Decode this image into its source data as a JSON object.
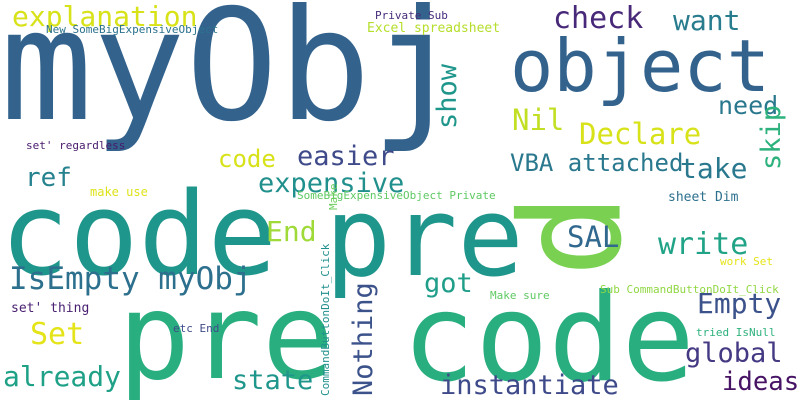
{
  "words": [
    {
      "text": "myObj",
      "color": "#33638d"
    },
    {
      "text": "object",
      "color": "#33638d"
    },
    {
      "text": "code",
      "color": "#1f968b"
    },
    {
      "text": "pre",
      "color": "#1f968b"
    },
    {
      "text": "pre",
      "color": "#29af7f"
    },
    {
      "text": "code",
      "color": "#29af7f"
    },
    {
      "text": "p",
      "color": "#7ad151"
    },
    {
      "text": "explanation",
      "color": "#d8e219"
    },
    {
      "text": "check",
      "color": "#482878"
    },
    {
      "text": "want",
      "color": "#287c8e"
    },
    {
      "text": "need",
      "color": "#2a788e"
    },
    {
      "text": "Declare",
      "color": "#d8e219"
    },
    {
      "text": "Nil",
      "color": "#c2df23"
    },
    {
      "text": "object",
      "color": "#33638d"
    },
    {
      "text": "code",
      "color": "#d8e219"
    },
    {
      "text": "easier",
      "color": "#3e4a89"
    },
    {
      "text": "take",
      "color": "#2a788e"
    },
    {
      "text": "expensive",
      "color": "#21908d"
    },
    {
      "text": "ref",
      "color": "#26828e"
    },
    {
      "text": "VBA attached",
      "color": "#2a788e"
    },
    {
      "text": "write",
      "color": "#20a386"
    },
    {
      "text": "SAL",
      "color": "#31688e"
    },
    {
      "text": "End",
      "color": "#a0da39"
    },
    {
      "text": "IsEmpty myObj",
      "color": "#2d708e"
    },
    {
      "text": "got",
      "color": "#1f9e89"
    },
    {
      "text": "Empty",
      "color": "#3b528b"
    },
    {
      "text": "Set",
      "color": "#e5e419"
    },
    {
      "text": "global",
      "color": "#443983"
    },
    {
      "text": "already",
      "color": "#1fa188"
    },
    {
      "text": "state",
      "color": "#1f968b"
    },
    {
      "text": "instantiate",
      "color": "#3e4a89"
    },
    {
      "text": "ideas",
      "color": "#471365"
    },
    {
      "text": "Private Sub",
      "color": "#472c7a"
    },
    {
      "text": "Excel spreadsheet",
      "color": "#b5de2b"
    },
    {
      "text": "New SomeBigExpensiveObject",
      "color": "#2c728e"
    },
    {
      "text": "set' regardless",
      "color": "#481a6c"
    },
    {
      "text": "make use",
      "color": "#dde318"
    },
    {
      "text": "SomeBigExpensiveObject Private",
      "color": "#5ec962"
    },
    {
      "text": "sheet Dim",
      "color": "#2d708e"
    },
    {
      "text": "set' thing",
      "color": "#481f70"
    },
    {
      "text": "etc End",
      "color": "#3e4a89"
    },
    {
      "text": "Make sure",
      "color": "#5ec962"
    },
    {
      "text": "Sub CommandButtonDoIt_Click",
      "color": "#90d743"
    },
    {
      "text": "tried IsNull",
      "color": "#2db27d"
    },
    {
      "text": "work Set",
      "color": "#e5e419"
    },
    {
      "text": "show",
      "color": "#1f968b"
    },
    {
      "text": "Nothing",
      "color": "#3b528b"
    },
    {
      "text": "skip",
      "color": "#2db27d"
    },
    {
      "text": "CommandButtonDoIt_Click",
      "color": "#21908d"
    },
    {
      "text": "Make",
      "color": "#6ccd5a"
    }
  ]
}
